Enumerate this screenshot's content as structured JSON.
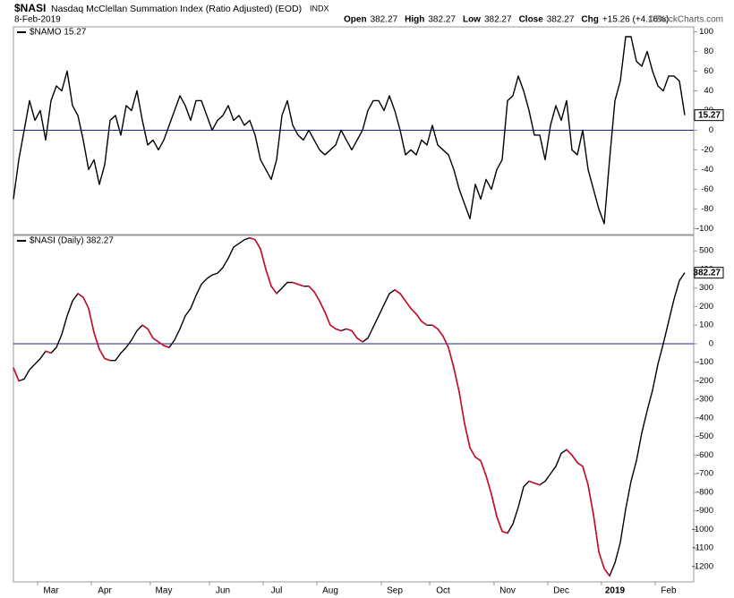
{
  "header": {
    "symbol": "$NASI",
    "description": "Nasdaq McClellan Summation Index (Ratio Adjusted) (EOD)",
    "exchange": "INDX",
    "date": "8-Feb-2019",
    "quote": [
      {
        "label": "Open",
        "value": 382.27
      },
      {
        "label": "High",
        "value": 382.27
      },
      {
        "label": "Low",
        "value": 382.27
      },
      {
        "label": "Close",
        "value": 382.27
      },
      {
        "label": "Chg",
        "value": "+15.26 (+4.16%)"
      }
    ],
    "credit": "©StockCharts.com"
  },
  "chart_data": [
    {
      "type": "line",
      "ylim": [
        -106,
        105
      ],
      "yticks": [
        100,
        80,
        60,
        40,
        20,
        0,
        -20,
        -40,
        -60,
        -80,
        -100
      ],
      "zero_line": true,
      "series": [
        {
          "name": "$NAMO 15.27",
          "color": "#000000",
          "values": [
            -70,
            -30,
            0,
            30,
            10,
            20,
            -10,
            30,
            45,
            40,
            60,
            25,
            15,
            -10,
            -40,
            -30,
            -55,
            -35,
            10,
            15,
            -5,
            25,
            20,
            40,
            10,
            -15,
            -10,
            -20,
            -10,
            5,
            20,
            35,
            25,
            10,
            30,
            30,
            15,
            0,
            10,
            15,
            25,
            10,
            15,
            5,
            10,
            -5,
            -30,
            -40,
            -50,
            -30,
            15,
            30,
            5,
            -5,
            -10,
            0,
            -10,
            -20,
            -25,
            -20,
            -15,
            0,
            -10,
            -20,
            -10,
            0,
            20,
            30,
            30,
            20,
            35,
            20,
            0,
            -25,
            -20,
            -25,
            -10,
            -15,
            5,
            -15,
            -20,
            -25,
            -40,
            -60,
            -75,
            -90,
            -55,
            -70,
            -50,
            -60,
            -40,
            -30,
            30,
            35,
            55,
            40,
            20,
            -5,
            -5,
            -30,
            5,
            25,
            10,
            30,
            -20,
            -25,
            0,
            -40,
            -60,
            -80,
            -95,
            -30,
            30,
            50,
            95,
            95,
            70,
            65,
            80,
            60,
            45,
            40,
            55,
            55,
            50,
            15.27
          ]
        }
      ]
    },
    {
      "type": "line",
      "ylim": [
        -1282,
        583
      ],
      "yticks": [
        500,
        400,
        300,
        200,
        100,
        0,
        -100,
        -200,
        -300,
        -400,
        -500,
        -600,
        -700,
        -800,
        -900,
        -1000,
        -1100,
        -1200
      ],
      "zero_line": true,
      "categories": [
        null,
        null,
        null,
        null,
        null,
        null,
        null,
        "Mar",
        null,
        null,
        null,
        null,
        null,
        null,
        null,
        null,
        null,
        "Apr",
        null,
        null,
        null,
        null,
        null,
        null,
        null,
        null,
        null,
        null,
        "May",
        null,
        null,
        null,
        null,
        null,
        null,
        null,
        null,
        null,
        null,
        "Jun",
        null,
        null,
        null,
        null,
        null,
        null,
        null,
        null,
        null,
        "Jul",
        null,
        null,
        null,
        null,
        null,
        null,
        null,
        null,
        null,
        "Aug",
        null,
        null,
        null,
        null,
        null,
        null,
        null,
        null,
        null,
        null,
        null,
        "Sep",
        null,
        null,
        null,
        null,
        null,
        null,
        null,
        null,
        "Oct",
        null,
        null,
        null,
        null,
        null,
        null,
        null,
        null,
        null,
        null,
        null,
        "Nov",
        null,
        null,
        null,
        null,
        null,
        null,
        null,
        null,
        null,
        "Dec",
        null,
        null,
        null,
        null,
        null,
        null,
        null,
        null,
        null,
        "2019",
        null,
        null,
        null,
        null,
        null,
        null,
        null,
        null,
        null,
        "Feb",
        null,
        null,
        null
      ],
      "series": [
        {
          "name": "$NASI (Daily) 382.27",
          "color": "#000000",
          "down_color": "#c8102e",
          "values": [
            -130,
            -200,
            -190,
            -140,
            -110,
            -80,
            -40,
            -50,
            -20,
            50,
            150,
            230,
            270,
            250,
            190,
            60,
            -30,
            -80,
            -90,
            -90,
            -50,
            -20,
            20,
            70,
            100,
            80,
            30,
            10,
            -10,
            -20,
            20,
            80,
            150,
            190,
            260,
            320,
            350,
            370,
            380,
            410,
            460,
            520,
            540,
            560,
            570,
            560,
            510,
            400,
            310,
            270,
            300,
            330,
            330,
            320,
            310,
            310,
            280,
            230,
            170,
            100,
            80,
            70,
            80,
            70,
            30,
            10,
            30,
            90,
            150,
            210,
            270,
            290,
            270,
            230,
            190,
            160,
            120,
            100,
            100,
            80,
            40,
            -20,
            -130,
            -260,
            -430,
            -560,
            -610,
            -630,
            -710,
            -810,
            -930,
            -1010,
            -1020,
            -970,
            -880,
            -770,
            -740,
            -750,
            -760,
            -740,
            -700,
            -660,
            -590,
            -570,
            -600,
            -640,
            -660,
            -760,
            -920,
            -1120,
            -1210,
            -1250,
            -1180,
            -1070,
            -890,
            -740,
            -630,
            -480,
            -360,
            -250,
            -110,
            0,
            120,
            240,
            340,
            382.27
          ]
        }
      ]
    }
  ]
}
